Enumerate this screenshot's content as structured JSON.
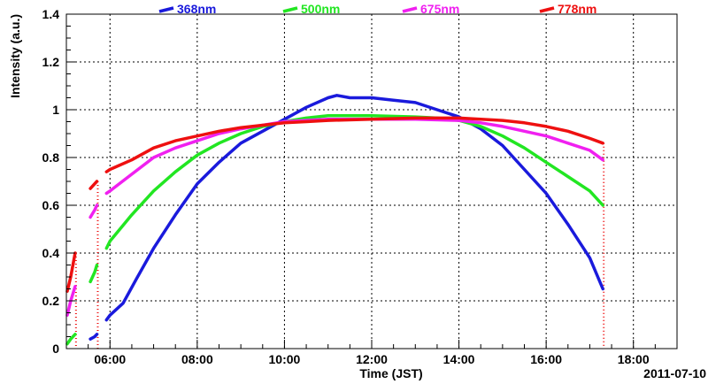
{
  "chart_data": {
    "type": "line",
    "title": "",
    "xlabel": "Time (JST)",
    "ylabel": "Intensity (a.u.)",
    "date_label": "2011-07-10",
    "xlim": [
      5.0,
      19.0
    ],
    "ylim": [
      0,
      1.4
    ],
    "x_ticks": [
      6,
      8,
      10,
      12,
      14,
      16,
      18
    ],
    "x_tick_labels": [
      "06:00",
      "08:00",
      "10:00",
      "12:00",
      "14:00",
      "16:00",
      "18:00"
    ],
    "y_ticks": [
      0,
      0.2,
      0.4,
      0.6,
      0.8,
      1.0,
      1.2,
      1.4
    ],
    "y_tick_labels": [
      "0",
      "0.2",
      "0.4",
      "0.6",
      "0.8",
      "1",
      "1.2",
      "1.4"
    ],
    "grid": true,
    "legend_position": "top",
    "series": [
      {
        "name": "368nm",
        "color": "#1a1adc",
        "segments": [
          [
            [
              5.55,
              0.04
            ],
            [
              5.65,
              0.05
            ],
            [
              5.7,
              0.06
            ]
          ],
          [
            [
              5.92,
              0.12
            ],
            [
              6.0,
              0.14
            ],
            [
              6.3,
              0.19
            ],
            [
              6.6,
              0.29
            ],
            [
              7.0,
              0.42
            ],
            [
              7.5,
              0.56
            ],
            [
              8.0,
              0.69
            ],
            [
              8.5,
              0.78
            ],
            [
              9.0,
              0.86
            ],
            [
              9.5,
              0.91
            ],
            [
              10.0,
              0.96
            ],
            [
              10.5,
              1.01
            ],
            [
              11.0,
              1.05
            ],
            [
              11.2,
              1.06
            ],
            [
              11.5,
              1.05
            ],
            [
              12.0,
              1.05
            ],
            [
              12.5,
              1.04
            ],
            [
              13.0,
              1.03
            ],
            [
              13.5,
              1.0
            ],
            [
              14.0,
              0.97
            ],
            [
              14.5,
              0.92
            ],
            [
              15.0,
              0.85
            ],
            [
              15.5,
              0.75
            ],
            [
              16.0,
              0.65
            ],
            [
              16.5,
              0.52
            ],
            [
              17.0,
              0.38
            ],
            [
              17.3,
              0.25
            ]
          ]
        ]
      },
      {
        "name": "500nm",
        "color": "#22e622",
        "segments": [
          [
            [
              5.02,
              0.02
            ],
            [
              5.1,
              0.04
            ],
            [
              5.2,
              0.06
            ]
          ],
          [
            [
              5.55,
              0.28
            ],
            [
              5.65,
              0.32
            ],
            [
              5.7,
              0.35
            ]
          ],
          [
            [
              5.92,
              0.42
            ],
            [
              6.0,
              0.45
            ],
            [
              6.5,
              0.56
            ],
            [
              7.0,
              0.66
            ],
            [
              7.5,
              0.74
            ],
            [
              8.0,
              0.81
            ],
            [
              8.5,
              0.86
            ],
            [
              9.0,
              0.9
            ],
            [
              9.5,
              0.93
            ],
            [
              10.0,
              0.95
            ],
            [
              10.5,
              0.965
            ],
            [
              11.0,
              0.975
            ],
            [
              12.0,
              0.975
            ],
            [
              13.0,
              0.97
            ],
            [
              13.5,
              0.965
            ],
            [
              14.0,
              0.955
            ],
            [
              14.5,
              0.93
            ],
            [
              15.0,
              0.89
            ],
            [
              15.5,
              0.84
            ],
            [
              16.0,
              0.78
            ],
            [
              16.5,
              0.72
            ],
            [
              17.0,
              0.66
            ],
            [
              17.3,
              0.6
            ]
          ]
        ]
      },
      {
        "name": "675nm",
        "color": "#f020f0",
        "segments": [
          [
            [
              5.02,
              0.14
            ],
            [
              5.1,
              0.2
            ],
            [
              5.2,
              0.26
            ]
          ],
          [
            [
              5.55,
              0.55
            ],
            [
              5.65,
              0.58
            ],
            [
              5.7,
              0.6
            ]
          ],
          [
            [
              5.92,
              0.65
            ],
            [
              6.0,
              0.66
            ],
            [
              6.5,
              0.73
            ],
            [
              7.0,
              0.8
            ],
            [
              7.5,
              0.84
            ],
            [
              8.0,
              0.87
            ],
            [
              8.5,
              0.9
            ],
            [
              9.0,
              0.92
            ],
            [
              9.5,
              0.935
            ],
            [
              10.0,
              0.95
            ],
            [
              10.5,
              0.955
            ],
            [
              11.0,
              0.96
            ],
            [
              12.0,
              0.96
            ],
            [
              13.0,
              0.96
            ],
            [
              14.0,
              0.955
            ],
            [
              14.5,
              0.945
            ],
            [
              15.0,
              0.93
            ],
            [
              15.5,
              0.91
            ],
            [
              16.0,
              0.89
            ],
            [
              16.5,
              0.86
            ],
            [
              17.0,
              0.83
            ],
            [
              17.3,
              0.79
            ]
          ]
        ]
      },
      {
        "name": "778nm",
        "color": "#ee1010",
        "segments": [
          [
            [
              5.02,
              0.24
            ],
            [
              5.1,
              0.3
            ],
            [
              5.2,
              0.4
            ]
          ],
          [
            [
              5.55,
              0.67
            ],
            [
              5.65,
              0.69
            ],
            [
              5.7,
              0.7
            ]
          ],
          [
            [
              5.92,
              0.74
            ],
            [
              6.0,
              0.75
            ],
            [
              6.5,
              0.79
            ],
            [
              7.0,
              0.84
            ],
            [
              7.5,
              0.87
            ],
            [
              8.0,
              0.89
            ],
            [
              8.5,
              0.91
            ],
            [
              9.0,
              0.925
            ],
            [
              9.5,
              0.935
            ],
            [
              10.0,
              0.945
            ],
            [
              10.5,
              0.95
            ],
            [
              11.0,
              0.955
            ],
            [
              12.0,
              0.96
            ],
            [
              13.0,
              0.965
            ],
            [
              14.0,
              0.965
            ],
            [
              14.5,
              0.96
            ],
            [
              15.0,
              0.955
            ],
            [
              15.5,
              0.945
            ],
            [
              16.0,
              0.93
            ],
            [
              16.5,
              0.91
            ],
            [
              17.0,
              0.88
            ],
            [
              17.3,
              0.86
            ]
          ]
        ]
      }
    ],
    "drops": [
      {
        "x": 5.22,
        "y_top": 0.4,
        "color": "#ee1010"
      },
      {
        "x": 5.72,
        "y_top": 0.7,
        "color": "#ee1010"
      },
      {
        "x": 17.32,
        "y_top": 0.86,
        "color": "#ee1010"
      }
    ]
  }
}
